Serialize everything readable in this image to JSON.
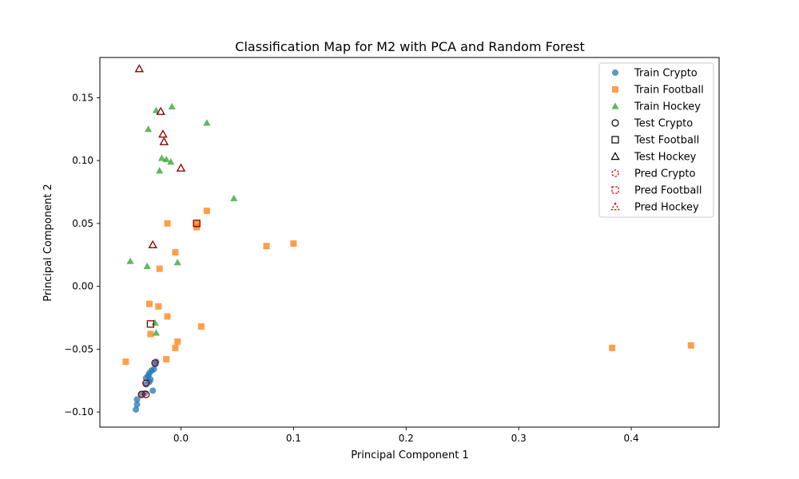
{
  "chart_data": {
    "type": "scatter",
    "title": "Classification Map for M2 with PCA and Random Forest",
    "xlabel": "Principal Component 1",
    "ylabel": "Principal Component 2",
    "xlim": [
      -0.072,
      0.478
    ],
    "ylim": [
      -0.112,
      0.182
    ],
    "xticks": [
      0.0,
      0.1,
      0.2,
      0.3,
      0.4
    ],
    "xtick_labels": [
      "0.0",
      "0.1",
      "0.2",
      "0.3",
      "0.4"
    ],
    "yticks": [
      -0.1,
      -0.05,
      0.0,
      0.05,
      0.1,
      0.15
    ],
    "ytick_labels": [
      "−0.10",
      "−0.05",
      "0.00",
      "0.05",
      "0.10",
      "0.15"
    ],
    "grid": false,
    "legend_position": "top-right",
    "series": [
      {
        "name": "Train Crypto",
        "marker": "circle",
        "style": "filled",
        "color": "#1f77b4",
        "points": [
          [
            -0.04,
            -0.098
          ],
          [
            -0.039,
            -0.094
          ],
          [
            -0.039,
            -0.09
          ],
          [
            -0.035,
            -0.086
          ],
          [
            -0.032,
            -0.085
          ],
          [
            -0.031,
            -0.078
          ],
          [
            -0.031,
            -0.073
          ],
          [
            -0.029,
            -0.071
          ],
          [
            -0.028,
            -0.069
          ],
          [
            -0.028,
            -0.076
          ],
          [
            -0.024,
            -0.066
          ],
          [
            -0.023,
            -0.062
          ],
          [
            -0.022,
            -0.06
          ],
          [
            -0.025,
            -0.083
          ],
          [
            -0.027,
            -0.074
          ],
          [
            -0.026,
            -0.067
          ]
        ]
      },
      {
        "name": "Train Football",
        "marker": "square",
        "style": "filled",
        "color": "#ff7f0e",
        "points": [
          [
            -0.049,
            -0.06
          ],
          [
            -0.028,
            -0.014
          ],
          [
            -0.027,
            -0.038
          ],
          [
            -0.02,
            -0.016
          ],
          [
            -0.019,
            0.014
          ],
          [
            -0.013,
            -0.058
          ],
          [
            -0.012,
            -0.024
          ],
          [
            -0.012,
            0.05
          ],
          [
            -0.005,
            0.027
          ],
          [
            -0.005,
            -0.049
          ],
          [
            -0.003,
            -0.044
          ],
          [
            0.014,
            0.047
          ],
          [
            0.014,
            0.05
          ],
          [
            0.018,
            -0.032
          ],
          [
            0.023,
            0.06
          ],
          [
            0.076,
            0.032
          ],
          [
            0.1,
            0.034
          ],
          [
            0.383,
            -0.049
          ],
          [
            0.453,
            -0.047
          ]
        ]
      },
      {
        "name": "Train Hockey",
        "marker": "triangle",
        "style": "filled",
        "color": "#2ca02c",
        "points": [
          [
            -0.045,
            0.02
          ],
          [
            -0.03,
            0.016
          ],
          [
            -0.029,
            0.125
          ],
          [
            -0.023,
            -0.029
          ],
          [
            -0.022,
            -0.037
          ],
          [
            -0.022,
            0.14
          ],
          [
            -0.019,
            0.092
          ],
          [
            -0.017,
            0.102
          ],
          [
            -0.013,
            0.101
          ],
          [
            -0.009,
            0.099
          ],
          [
            -0.008,
            0.143
          ],
          [
            -0.003,
            0.019
          ],
          [
            0.023,
            0.13
          ],
          [
            0.047,
            0.07
          ]
        ]
      },
      {
        "name": "Test Crypto",
        "marker": "circle",
        "style": "outline",
        "color": "#000000",
        "points": [
          [
            -0.035,
            -0.086
          ],
          [
            -0.031,
            -0.086
          ],
          [
            -0.031,
            -0.077
          ],
          [
            -0.023,
            -0.061
          ]
        ]
      },
      {
        "name": "Test Football",
        "marker": "square",
        "style": "outline",
        "color": "#000000",
        "points": [
          [
            -0.027,
            -0.03
          ],
          [
            0.014,
            0.05
          ]
        ]
      },
      {
        "name": "Test Hockey",
        "marker": "triangle",
        "style": "outline",
        "color": "#000000",
        "points": [
          [
            -0.037,
            0.173
          ],
          [
            -0.025,
            0.033
          ],
          [
            -0.018,
            0.139
          ],
          [
            -0.016,
            0.121
          ],
          [
            -0.015,
            0.115
          ],
          [
            0.0,
            0.094
          ]
        ]
      },
      {
        "name": "Pred Crypto",
        "marker": "circle",
        "style": "dashed",
        "color": "#e00000",
        "points": [
          [
            -0.035,
            -0.086
          ],
          [
            -0.031,
            -0.086
          ],
          [
            -0.031,
            -0.077
          ],
          [
            -0.023,
            -0.061
          ]
        ]
      },
      {
        "name": "Pred Football",
        "marker": "square",
        "style": "dashed",
        "color": "#e00000",
        "points": [
          [
            -0.027,
            -0.03
          ],
          [
            0.014,
            0.05
          ]
        ]
      },
      {
        "name": "Pred Hockey",
        "marker": "triangle",
        "style": "dashed",
        "color": "#e00000",
        "points": [
          [
            -0.037,
            0.173
          ],
          [
            -0.025,
            0.033
          ],
          [
            -0.018,
            0.139
          ],
          [
            -0.016,
            0.121
          ],
          [
            -0.015,
            0.115
          ],
          [
            0.0,
            0.094
          ]
        ]
      }
    ]
  }
}
